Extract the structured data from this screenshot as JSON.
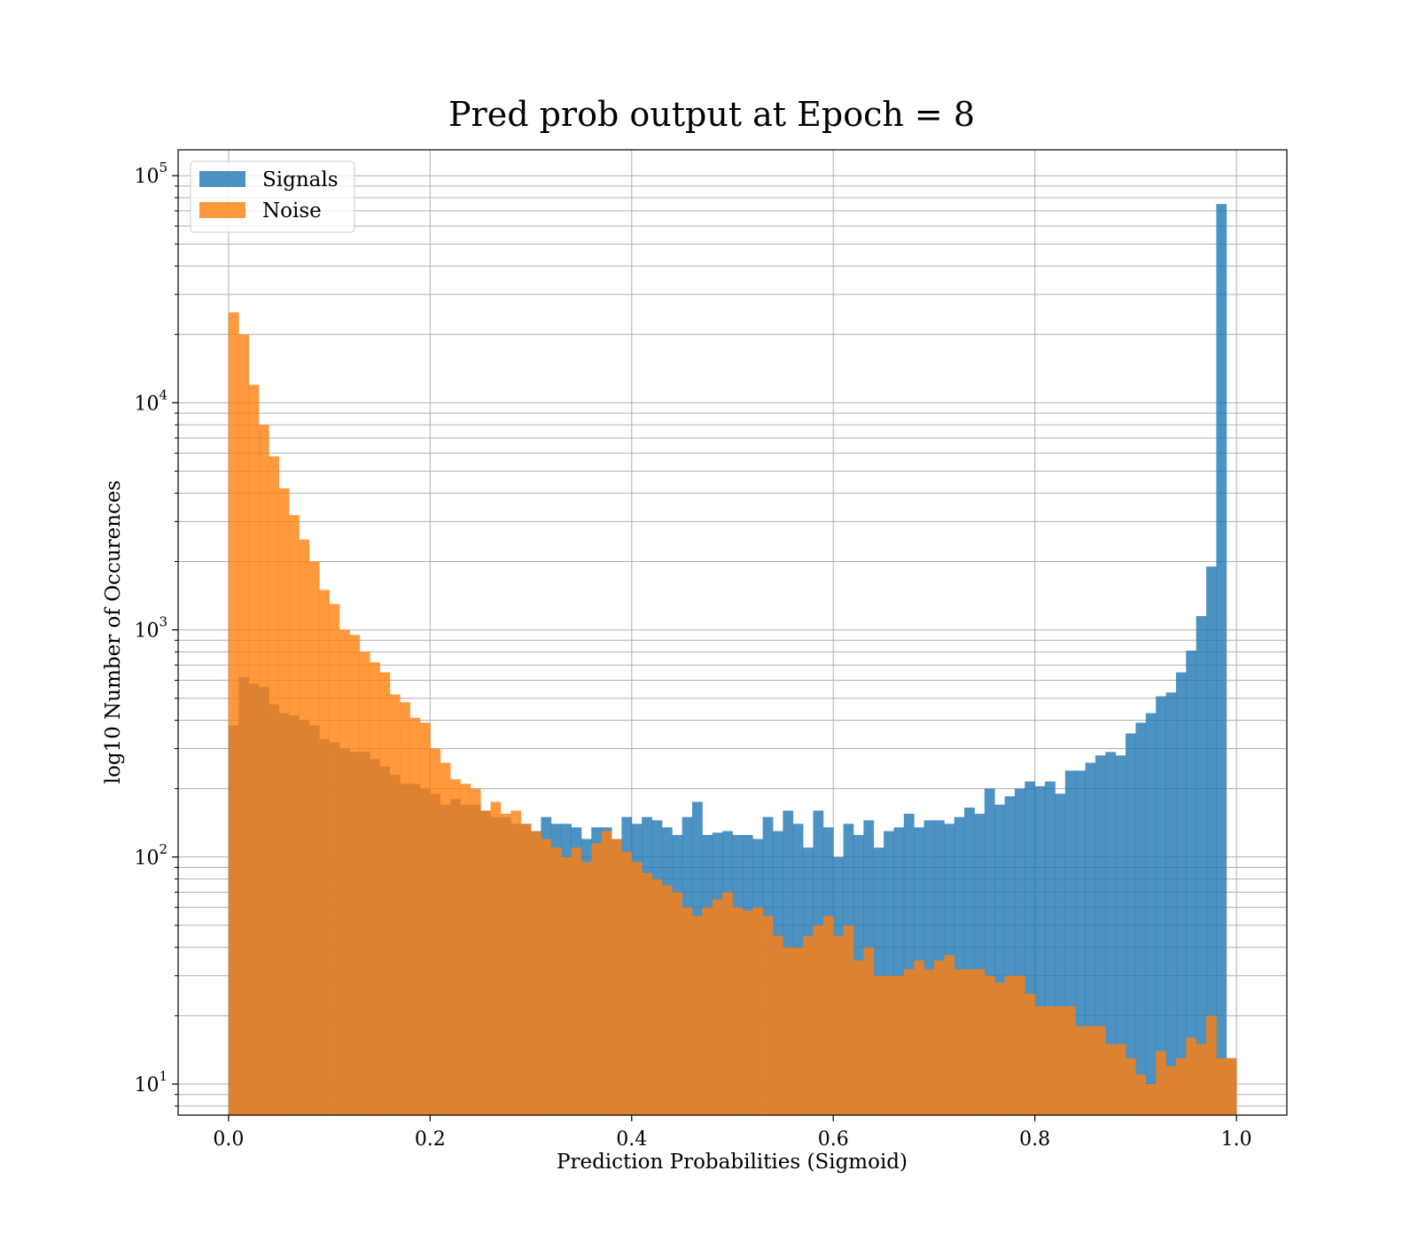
{
  "chart_data": {
    "type": "histogram",
    "title": "Pred prob output at Epoch = 8",
    "xlabel": "Prediction Probabilities (Sigmoid)",
    "ylabel": "log10 Number of Occurences",
    "yscale": "log",
    "xlim": [
      -0.05,
      1.05
    ],
    "ylim": [
      7.3,
      130000
    ],
    "grid": true,
    "legend_position": "upper-left",
    "x_ticks": [
      "0.0",
      "0.2",
      "0.4",
      "0.6",
      "0.8",
      "1.0"
    ],
    "y_ticks": [
      {
        "base": "10",
        "exp": "1"
      },
      {
        "base": "10",
        "exp": "2"
      },
      {
        "base": "10",
        "exp": "3"
      },
      {
        "base": "10",
        "exp": "4"
      },
      {
        "base": "10",
        "exp": "5"
      }
    ],
    "bin_edges": {
      "start": 0.0,
      "end": 1.0,
      "count": 100
    },
    "series": [
      {
        "name": "Signals",
        "color": "#1f77b4",
        "alpha": 0.8,
        "values": [
          380,
          620,
          580,
          560,
          470,
          430,
          420,
          400,
          380,
          330,
          320,
          300,
          290,
          290,
          270,
          250,
          230,
          210,
          210,
          200,
          190,
          170,
          180,
          170,
          170,
          160,
          150,
          150,
          140,
          140,
          130,
          150,
          140,
          140,
          135,
          120,
          135,
          135,
          120,
          150,
          140,
          150,
          145,
          135,
          125,
          150,
          175,
          125,
          128,
          130,
          125,
          125,
          120,
          150,
          130,
          160,
          140,
          110,
          160,
          135,
          100,
          140,
          125,
          145,
          110,
          130,
          135,
          155,
          135,
          145,
          145,
          140,
          150,
          165,
          155,
          200,
          170,
          185,
          200,
          215,
          205,
          215,
          190,
          240,
          240,
          260,
          280,
          290,
          280,
          350,
          390,
          430,
          510,
          530,
          650,
          810,
          1150,
          1900,
          75000,
          13
        ]
      },
      {
        "name": "Noise",
        "color": "#ff7f0e",
        "alpha": 0.8,
        "values": [
          25000,
          20000,
          12000,
          8000,
          5800,
          4200,
          3200,
          2500,
          2000,
          1500,
          1300,
          1000,
          950,
          800,
          720,
          650,
          520,
          480,
          410,
          390,
          300,
          260,
          220,
          210,
          200,
          160,
          175,
          155,
          160,
          140,
          130,
          120,
          110,
          100,
          110,
          95,
          115,
          130,
          120,
          105,
          95,
          85,
          80,
          75,
          70,
          60,
          55,
          60,
          65,
          70,
          60,
          58,
          60,
          55,
          45,
          40,
          40,
          45,
          50,
          55,
          45,
          50,
          35,
          40,
          30,
          30,
          30,
          32,
          35,
          32,
          35,
          37,
          32,
          32,
          32,
          30,
          28,
          30,
          30,
          25,
          22,
          22,
          22,
          22,
          18,
          18,
          18,
          15,
          15,
          13,
          11,
          10,
          14,
          12,
          13,
          16,
          15,
          20,
          13,
          13
        ]
      }
    ]
  }
}
